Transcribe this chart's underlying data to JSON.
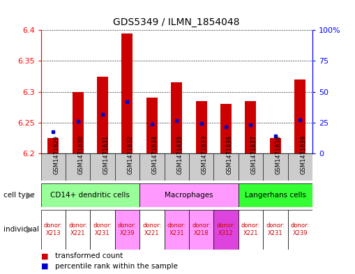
{
  "title": "GDS5349 / ILMN_1854048",
  "samples": [
    "GSM1471629",
    "GSM1471630",
    "GSM1471631",
    "GSM1471632",
    "GSM1471634",
    "GSM1471635",
    "GSM1471633",
    "GSM1471636",
    "GSM1471637",
    "GSM1471638",
    "GSM1471639"
  ],
  "red_values": [
    6.225,
    6.3,
    6.325,
    6.395,
    6.29,
    6.315,
    6.285,
    6.28,
    6.285,
    6.225,
    6.32
  ],
  "blue_values": [
    6.235,
    6.252,
    6.263,
    6.284,
    6.248,
    6.253,
    6.249,
    6.243,
    6.247,
    6.228,
    6.254
  ],
  "y_min": 6.2,
  "y_max": 6.4,
  "y_ticks": [
    6.2,
    6.25,
    6.3,
    6.35,
    6.4
  ],
  "y_right_ticks": [
    0,
    25,
    50,
    75,
    100
  ],
  "cell_types": [
    {
      "label": "CD14+ dendritic cells",
      "start": 0,
      "end": 4,
      "color": "#99ff99"
    },
    {
      "label": "Macrophages",
      "start": 4,
      "end": 8,
      "color": "#ff99ff"
    },
    {
      "label": "Langerhans cells",
      "start": 8,
      "end": 11,
      "color": "#33ff33"
    }
  ],
  "donors": [
    "donor:\nX213",
    "donor:\nX221",
    "donor:\nX231",
    "donor:\nX239",
    "donor:\nX221",
    "donor:\nX231",
    "donor:\nX218",
    "donor:\nX312",
    "donor:\nX221",
    "donor:\nX231",
    "donor:\nX239"
  ],
  "donor_bg_colors": [
    "#ffffff",
    "#ffffff",
    "#ffffff",
    "#ff99ff",
    "#ffffff",
    "#ff99ff",
    "#ff99ff",
    "#dd44dd",
    "#ffffff",
    "#ffffff",
    "#ffffff"
  ],
  "bar_color": "#cc0000",
  "dot_color": "#0000cc",
  "background_color": "#ffffff",
  "sample_bg_color": "#cccccc",
  "border_color": "#000000"
}
